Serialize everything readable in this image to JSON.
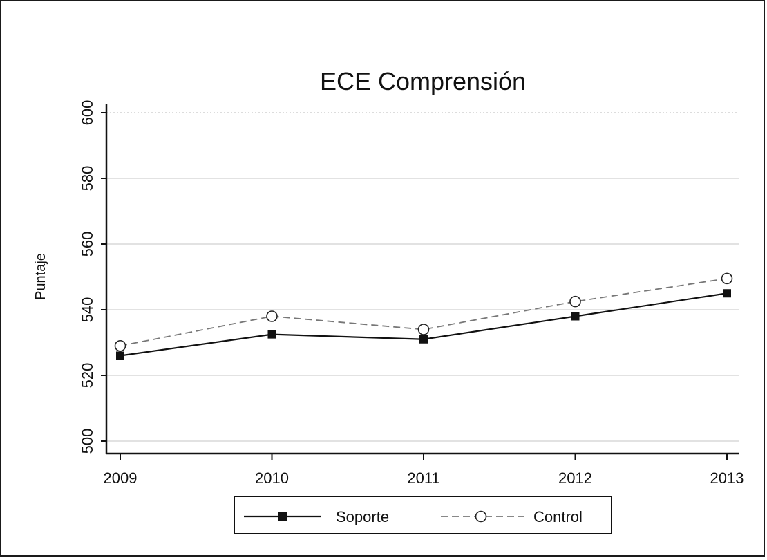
{
  "chart_data": {
    "type": "line",
    "title": "ECE Comprensión",
    "xlabel": "",
    "ylabel": "Puntaje",
    "x": [
      "2009",
      "2010",
      "2011",
      "2012",
      "2013"
    ],
    "ylim": [
      500,
      600
    ],
    "yticks": [
      "500",
      "520",
      "540",
      "560",
      "580",
      "600"
    ],
    "grid": true,
    "legend_position": "bottom",
    "series": [
      {
        "name": "Soporte",
        "values": [
          526,
          532.5,
          531,
          538,
          545
        ],
        "style": "solid",
        "marker": "filled-square",
        "color": "#111111"
      },
      {
        "name": "Control",
        "values": [
          529,
          538,
          534,
          542.5,
          549.5
        ],
        "style": "dashed",
        "marker": "hollow-circle",
        "color": "#777777"
      }
    ]
  }
}
